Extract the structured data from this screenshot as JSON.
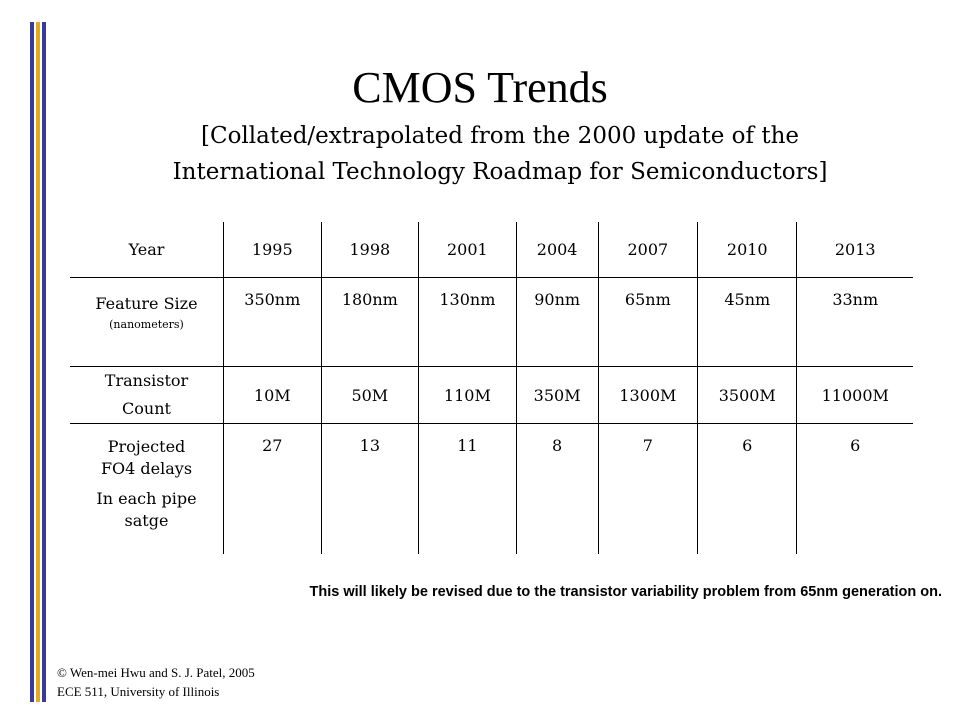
{
  "colors": {
    "accent_blue": "#3a3a9c",
    "accent_gold": "#e2aa1f"
  },
  "title": "CMOS Trends",
  "subtitle_line1": "[Collated/extrapolated from the 2000 update of the",
  "subtitle_line2": "International Technology Roadmap for Semiconductors]",
  "table": {
    "header_label": "Year",
    "years": [
      "1995",
      "1998",
      "2001",
      "2004",
      "2007",
      "2010",
      "2013"
    ],
    "feature_size": {
      "label": "Feature Size",
      "sublabel": "(nanometers)",
      "values": [
        "350nm",
        "180nm",
        "130nm",
        "90nm",
        "65nm",
        "45nm",
        "33nm"
      ]
    },
    "transistor_count": {
      "label_line1": "Transistor",
      "label_line2": "Count",
      "values": [
        "10M",
        "50M",
        "110M",
        "350M",
        "1300M",
        "3500M",
        "11000M"
      ]
    },
    "fo4_delays": {
      "label_line1": "Projected",
      "label_line2": "FO4 delays",
      "label_line3": "In each pipe",
      "label_line4": "satge",
      "values": [
        "27",
        "13",
        "11",
        "8",
        "7",
        "6",
        "6"
      ]
    }
  },
  "note": "This will likely be revised due to the transistor variability problem from 65nm generation on.",
  "footer_line1": "© Wen-mei Hwu and S. J. Patel, 2005",
  "footer_line2": "ECE 511, University of Illinois"
}
